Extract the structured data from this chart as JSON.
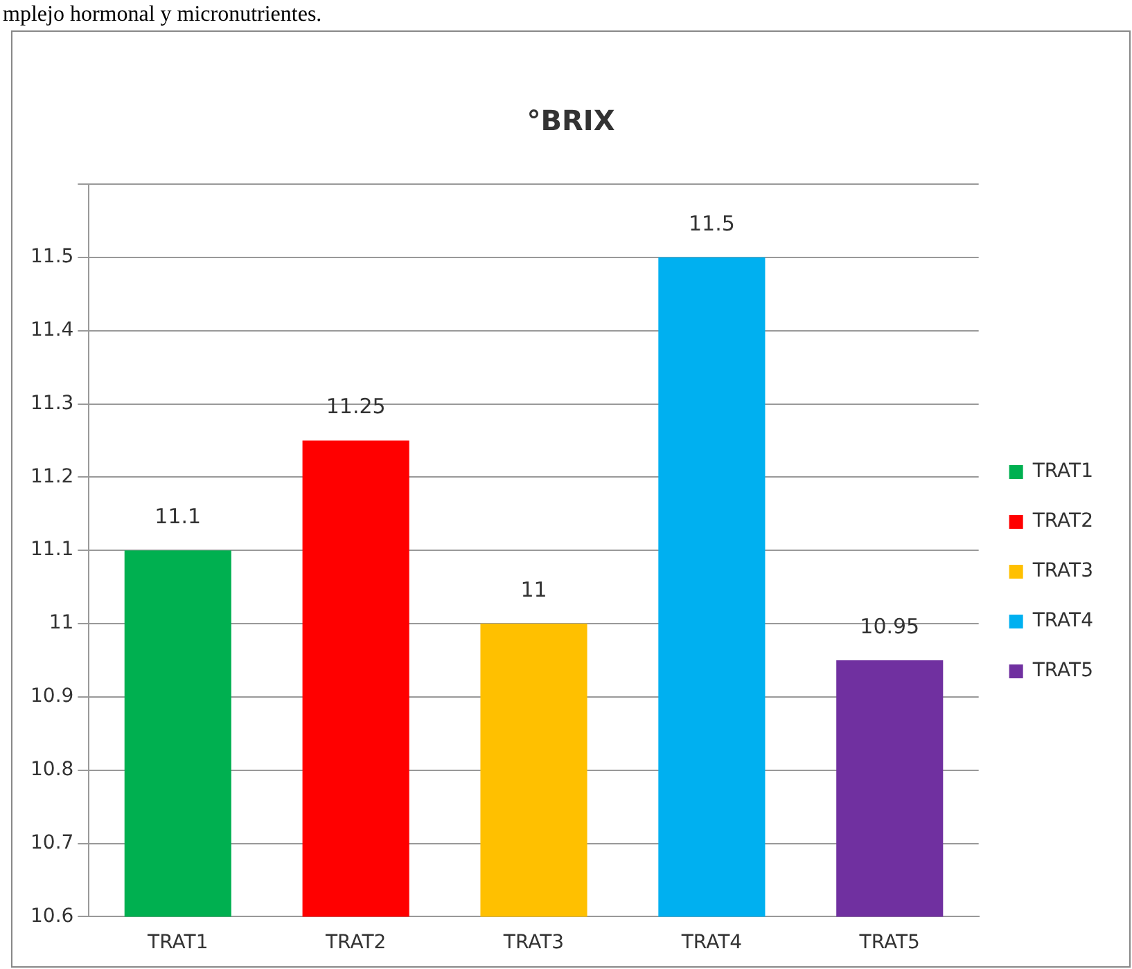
{
  "chart_data": {
    "type": "bar",
    "title": "°BRIX",
    "annotations": [
      "mplejo hormonal y micronutrientes."
    ],
    "categories": [
      "TRAT1",
      "TRAT2",
      "TRAT3",
      "TRAT4",
      "TRAT5"
    ],
    "series": [
      {
        "name": "TRAT1",
        "color": "#00b050",
        "values": [
          11.1,
          null,
          null,
          null,
          null
        ]
      },
      {
        "name": "TRAT2",
        "color": "#ff0000",
        "values": [
          null,
          11.25,
          null,
          null,
          null
        ]
      },
      {
        "name": "TRAT3",
        "color": "#ffc000",
        "values": [
          null,
          null,
          11,
          null,
          null
        ]
      },
      {
        "name": "TRAT4",
        "color": "#00b0f0",
        "values": [
          null,
          null,
          null,
          11.5,
          null
        ]
      },
      {
        "name": "TRAT5",
        "color": "#7030a0",
        "values": [
          null,
          null,
          null,
          null,
          10.95
        ]
      }
    ],
    "ylim": [
      10.6,
      11.6
    ],
    "yticks": [
      10.6,
      10.7,
      10.8,
      10.9,
      11,
      11.1,
      11.2,
      11.3,
      11.4,
      11.5,
      {
        "value": 11.6,
        "label": null
      }
    ],
    "grid": "y",
    "legend": "right",
    "data_labels": true
  }
}
